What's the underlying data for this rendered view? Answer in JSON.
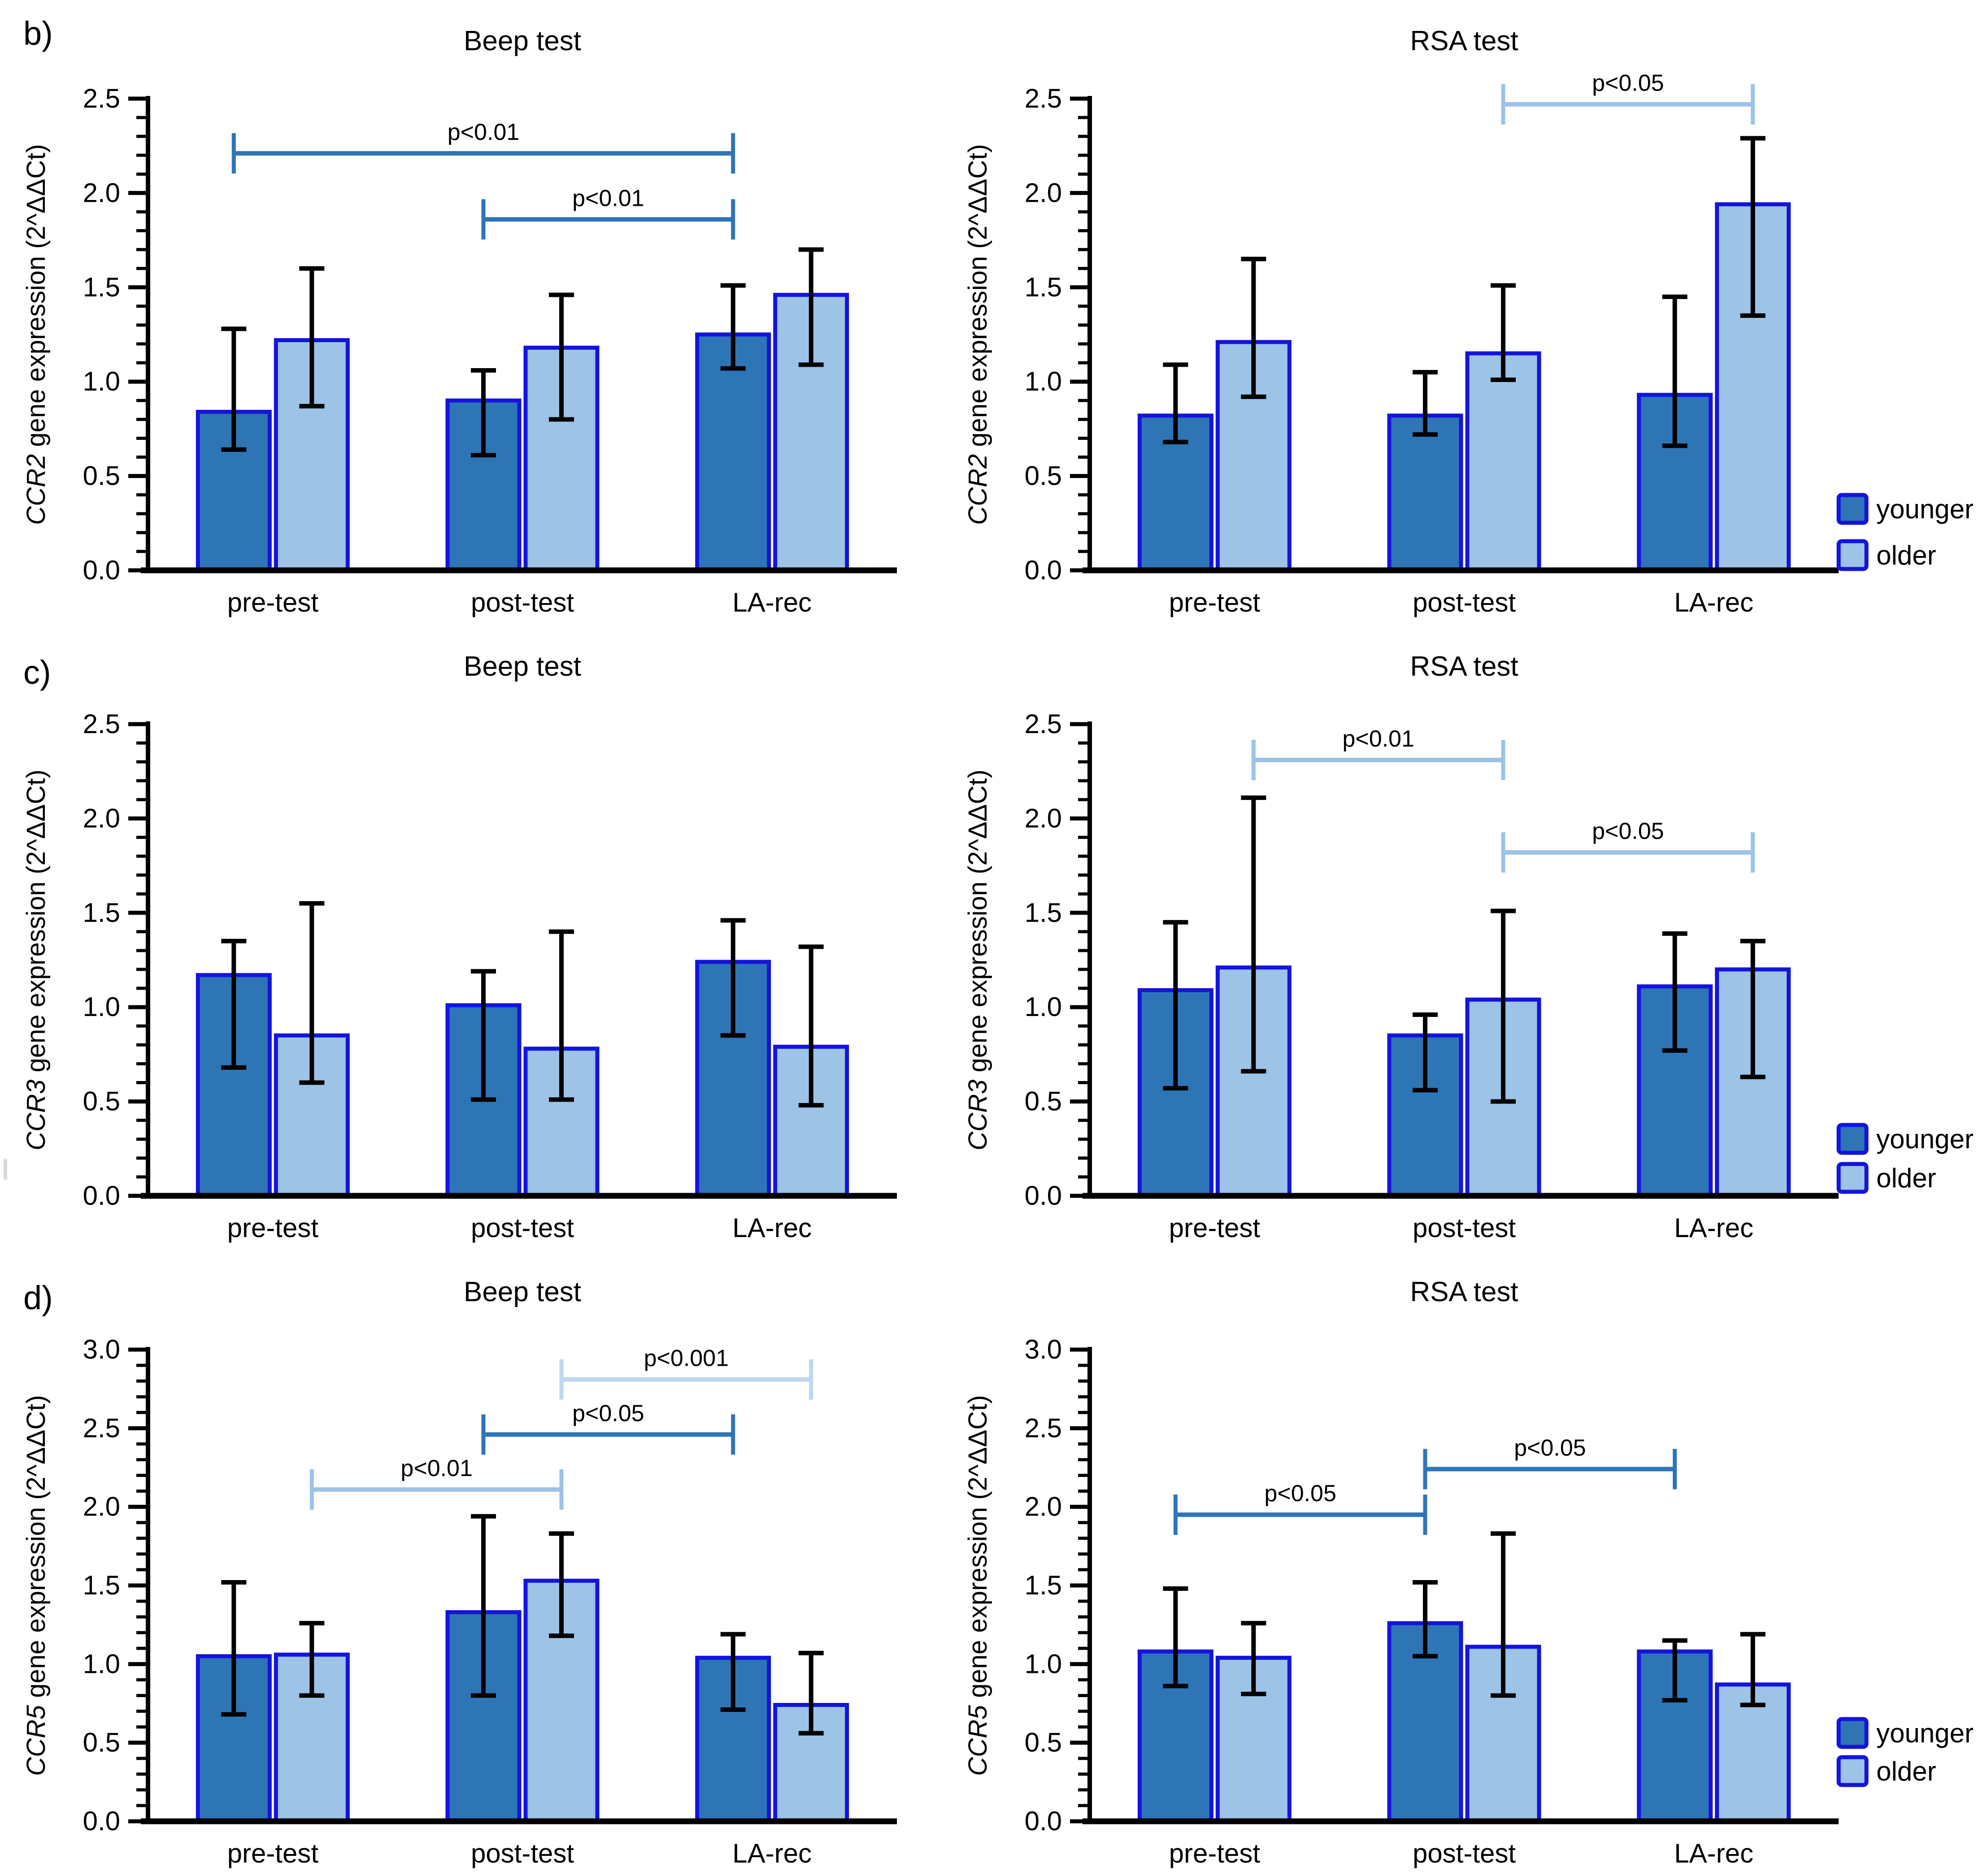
{
  "figure": {
    "panel_letters": [
      "b)",
      "c)",
      "d)"
    ],
    "background": "#FFFFFF"
  },
  "colors": {
    "younger_fill": "#2E75B6",
    "older_fill": "#9DC3E6",
    "bar_border": "#1414DC",
    "error_bar": "#000000",
    "axis": "#000000",
    "text": "#000000",
    "bracket_medium": "#2E75B6",
    "bracket_light": "#9DC3E6",
    "bracket_pale": "#BDD7EE"
  },
  "legend": {
    "labels": [
      "younger",
      "older"
    ]
  },
  "chart_data": [
    {
      "id": "b-beep",
      "type": "bar",
      "panel": "b",
      "title": "Beep test",
      "ylabel": "CCR2 gene expression (2^ΔΔCt)",
      "ylabel_italic": "CCR2",
      "ylabel_rest": " gene expression (2^ΔΔCt)",
      "xlabel": "",
      "ylim": [
        0,
        2.5
      ],
      "ytick_labels": [
        "0.0",
        "0.5",
        "1.0",
        "1.5",
        "2.0",
        "2.5"
      ],
      "grid": false,
      "categories": [
        "pre-test",
        "post-test",
        "LA-rec"
      ],
      "series": [
        {
          "name": "younger",
          "values": [
            0.84,
            0.9,
            1.25
          ],
          "err_low": [
            0.64,
            0.61,
            1.07
          ],
          "err_high": [
            1.28,
            1.06,
            1.51
          ]
        },
        {
          "name": "older",
          "values": [
            1.22,
            1.18,
            1.46
          ],
          "err_low": [
            0.87,
            0.8,
            1.09
          ],
          "err_high": [
            1.6,
            1.46,
            1.7
          ]
        }
      ],
      "significance": [
        {
          "label": "p<0.01",
          "y": 2.21,
          "from_cat": 0,
          "from_series": 0,
          "to_cat": 2,
          "to_series": 0,
          "color": "medium"
        },
        {
          "label": "p<0.01",
          "y": 1.86,
          "from_cat": 1,
          "from_series": 0,
          "to_cat": 2,
          "to_series": 0,
          "color": "medium"
        }
      ],
      "legend": false,
      "legend_y": null
    },
    {
      "id": "b-rsa",
      "type": "bar",
      "panel": "b",
      "title": "RSA test",
      "ylabel": "CCR2 gene expression (2^ΔΔCt)",
      "ylabel_italic": "CCR2",
      "ylabel_rest": " gene expression (2^ΔΔCt)",
      "xlabel": "",
      "ylim": [
        0,
        2.5
      ],
      "ytick_labels": [
        "0.0",
        "0.5",
        "1.0",
        "1.5",
        "2.0",
        "2.5"
      ],
      "grid": false,
      "categories": [
        "pre-test",
        "post-test",
        "LA-rec"
      ],
      "series": [
        {
          "name": "younger",
          "values": [
            0.82,
            0.82,
            0.93
          ],
          "err_low": [
            0.68,
            0.72,
            0.66
          ],
          "err_high": [
            1.09,
            1.05,
            1.45
          ]
        },
        {
          "name": "older",
          "values": [
            1.21,
            1.15,
            1.94
          ],
          "err_low": [
            0.92,
            1.01,
            1.35
          ],
          "err_high": [
            1.65,
            1.51,
            2.29
          ]
        }
      ],
      "significance": [
        {
          "label": "p<0.05",
          "y": 2.47,
          "from_cat": 1,
          "from_series": 1,
          "to_cat": 2,
          "to_series": 1,
          "color": "light"
        }
      ],
      "legend": true,
      "legend_y": [
        1135,
        1238
      ]
    },
    {
      "id": "c-beep",
      "type": "bar",
      "panel": "c",
      "title": "Beep test",
      "ylabel": "CCR3 gene expression (2^ΔΔCt)",
      "ylabel_italic": "CCR3",
      "ylabel_rest": " gene expression (2^ΔΔCt)",
      "xlabel": "",
      "ylim": [
        0,
        2.5
      ],
      "ytick_labels": [
        "0.0",
        "0.5",
        "1.0",
        "1.5",
        "2.0",
        "2.5"
      ],
      "grid": false,
      "categories": [
        "pre-test",
        "post-test",
        "LA-rec"
      ],
      "series": [
        {
          "name": "younger",
          "values": [
            1.17,
            1.01,
            1.24
          ],
          "err_low": [
            0.68,
            0.51,
            0.85
          ],
          "err_high": [
            1.35,
            1.19,
            1.46
          ]
        },
        {
          "name": "older",
          "values": [
            0.85,
            0.78,
            0.79
          ],
          "err_low": [
            0.6,
            0.51,
            0.48
          ],
          "err_high": [
            1.55,
            1.4,
            1.32
          ]
        }
      ],
      "significance": [],
      "legend": false,
      "legend_y": null
    },
    {
      "id": "c-rsa",
      "type": "bar",
      "panel": "c",
      "title": "RSA test",
      "ylabel": "CCR3 gene expression (2^ΔΔCt)",
      "ylabel_italic": "CCR3",
      "ylabel_rest": " gene expression (2^ΔΔCt)",
      "xlabel": "",
      "ylim": [
        0,
        2.5
      ],
      "ytick_labels": [
        "0.0",
        "0.5",
        "1.0",
        "1.5",
        "2.0",
        "2.5"
      ],
      "grid": false,
      "categories": [
        "pre-test",
        "post-test",
        "LA-rec"
      ],
      "series": [
        {
          "name": "younger",
          "values": [
            1.09,
            0.85,
            1.11
          ],
          "err_low": [
            0.57,
            0.56,
            0.77
          ],
          "err_high": [
            1.45,
            0.96,
            1.39
          ]
        },
        {
          "name": "older",
          "values": [
            1.21,
            1.04,
            1.2
          ],
          "err_low": [
            0.66,
            0.5,
            0.63
          ],
          "err_high": [
            2.11,
            1.51,
            1.35
          ]
        }
      ],
      "significance": [
        {
          "label": "p<0.01",
          "y": 2.31,
          "from_cat": 0,
          "from_series": 1,
          "to_cat": 1,
          "to_series": 1,
          "color": "light"
        },
        {
          "label": "p<0.05",
          "y": 1.82,
          "from_cat": 1,
          "from_series": 1,
          "to_cat": 2,
          "to_series": 1,
          "color": "light"
        }
      ],
      "legend": true,
      "legend_y": [
        1145,
        1232
      ]
    },
    {
      "id": "d-beep",
      "type": "bar",
      "panel": "d",
      "title": "Beep test",
      "ylabel": "CCR5 gene expression (2^ΔΔCt)",
      "ylabel_italic": "CCR5",
      "ylabel_rest": " gene expression (2^ΔΔCt)",
      "xlabel": "",
      "ylim": [
        0,
        3.0
      ],
      "ytick_labels": [
        "0.0",
        "0.5",
        "1.0",
        "1.5",
        "2.0",
        "2.5",
        "3.0"
      ],
      "grid": false,
      "categories": [
        "pre-test",
        "post-test",
        "LA-rec"
      ],
      "series": [
        {
          "name": "younger",
          "values": [
            1.05,
            1.33,
            1.04
          ],
          "err_low": [
            0.68,
            0.8,
            0.71
          ],
          "err_high": [
            1.52,
            1.94,
            1.19
          ]
        },
        {
          "name": "older",
          "values": [
            1.06,
            1.53,
            0.74
          ],
          "err_low": [
            0.8,
            1.18,
            0.56
          ],
          "err_high": [
            1.26,
            1.83,
            1.07
          ]
        }
      ],
      "significance": [
        {
          "label": "p<0.01",
          "y": 2.11,
          "from_cat": 0,
          "from_series": 1,
          "to_cat": 1,
          "to_series": 1,
          "color": "light"
        },
        {
          "label": "p<0.05",
          "y": 2.46,
          "from_cat": 1,
          "from_series": 0,
          "to_cat": 2,
          "to_series": 0,
          "color": "medium"
        },
        {
          "label": "p<0.001",
          "y": 2.81,
          "from_cat": 1,
          "from_series": 1,
          "to_cat": 2,
          "to_series": 1,
          "color": "pale"
        }
      ],
      "legend": false,
      "legend_y": null
    },
    {
      "id": "d-rsa",
      "type": "bar",
      "panel": "d",
      "title": "RSA test",
      "ylabel": "CCR5 gene expression (2^ΔΔCt)",
      "ylabel_italic": "CCR5",
      "ylabel_rest": " gene expression (2^ΔΔCt)",
      "xlabel": "",
      "ylim": [
        0,
        3.0
      ],
      "ytick_labels": [
        "0.0",
        "0.5",
        "1.0",
        "1.5",
        "2.0",
        "2.5",
        "3.0"
      ],
      "grid": false,
      "categories": [
        "pre-test",
        "post-test",
        "LA-rec"
      ],
      "series": [
        {
          "name": "younger",
          "values": [
            1.08,
            1.26,
            1.08
          ],
          "err_low": [
            0.86,
            1.05,
            0.77
          ],
          "err_high": [
            1.48,
            1.52,
            1.15
          ]
        },
        {
          "name": "older",
          "values": [
            1.04,
            1.11,
            0.87
          ],
          "err_low": [
            0.81,
            0.8,
            0.74
          ],
          "err_high": [
            1.26,
            1.83,
            1.19
          ]
        }
      ],
      "significance": [
        {
          "label": "p<0.05",
          "y": 1.95,
          "from_cat": 0,
          "from_series": 0,
          "to_cat": 1,
          "to_series": 0,
          "color": "medium"
        },
        {
          "label": "p<0.05",
          "y": 2.24,
          "from_cat": 1,
          "from_series": 0,
          "to_cat": 2,
          "to_series": 0,
          "color": "medium"
        }
      ],
      "legend": true,
      "legend_y": [
        1075,
        1160
      ]
    }
  ]
}
